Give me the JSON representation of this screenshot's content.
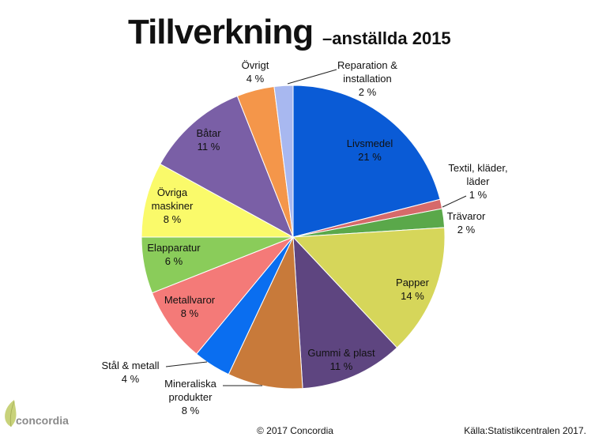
{
  "title": "Tillverkning",
  "subtitle": "–anställda 2015",
  "footer": {
    "copyright": "© 2017 Concordia",
    "source": "Källa:Statistikcentralen 2017."
  },
  "logo": {
    "text": "concordia",
    "icon": "leaf-logo-icon"
  },
  "chart_data": {
    "type": "pie",
    "unit": "%",
    "slices": [
      {
        "label": "Livsmedel",
        "value": 21,
        "display": "21 %",
        "color": "#0a5bd6"
      },
      {
        "label": "Textil, kläder, läder",
        "value": 1,
        "display": "1 %",
        "color": "#d66a6a"
      },
      {
        "label": "Trävaror",
        "value": 2,
        "display": "2 %",
        "color": "#5aa84a"
      },
      {
        "label": "Papper",
        "value": 14,
        "display": "14 %",
        "color": "#d6d65a"
      },
      {
        "label": "Gummi & plast",
        "value": 11,
        "display": "11 %",
        "color": "#5e4580"
      },
      {
        "label": "Mineraliska produkter",
        "value": 8,
        "display": "8 %",
        "color": "#c87a3a"
      },
      {
        "label": "Stål & metall",
        "value": 4,
        "display": "4 %",
        "color": "#0a6ef0"
      },
      {
        "label": "Metallvaror",
        "value": 8,
        "display": "8 %",
        "color": "#f47a78"
      },
      {
        "label": "Elapparatur",
        "value": 6,
        "display": "6 %",
        "color": "#8acc5a"
      },
      {
        "label": "Övriga maskiner",
        "value": 8,
        "display": "8 %",
        "color": "#fafa6a"
      },
      {
        "label": "Båtar",
        "value": 11,
        "display": "11 %",
        "color": "#7a5fa6"
      },
      {
        "label": "Övrigt",
        "value": 4,
        "display": "4 %",
        "color": "#f4964a"
      },
      {
        "label": "Reparation & installation",
        "value": 2,
        "display": "2 %",
        "color": "#a8b8f0"
      }
    ]
  }
}
